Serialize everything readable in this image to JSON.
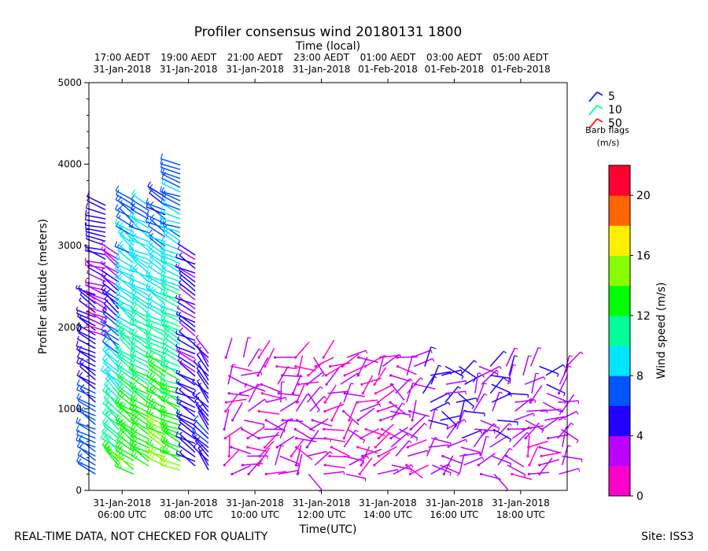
{
  "chart_data": {
    "type": "scatter",
    "title": "Profiler consensus wind 20180131 1800",
    "top_axis_label": "Time (local)",
    "xlabel": "Time(UTC)",
    "ylabel": "Profiler altitude (meters)",
    "x_unit": "hours UTC since 31-Jan-2018 05:00",
    "xlim": [
      0,
      14.4
    ],
    "ylim": [
      0,
      5000
    ],
    "y_ticks": [
      0,
      1000,
      2000,
      3000,
      4000,
      5000
    ],
    "bottom_ticks": [
      {
        "x": 1,
        "line1": "31-Jan-2018",
        "line2": "06:00 UTC"
      },
      {
        "x": 3,
        "line1": "31-Jan-2018",
        "line2": "08:00 UTC"
      },
      {
        "x": 5,
        "line1": "31-Jan-2018",
        "line2": "10:00 UTC"
      },
      {
        "x": 7,
        "line1": "31-Jan-2018",
        "line2": "12:00 UTC"
      },
      {
        "x": 9,
        "line1": "31-Jan-2018",
        "line2": "14:00 UTC"
      },
      {
        "x": 11,
        "line1": "31-Jan-2018",
        "line2": "16:00 UTC"
      },
      {
        "x": 13,
        "line1": "31-Jan-2018",
        "line2": "18:00 UTC"
      }
    ],
    "top_ticks": [
      {
        "x": 1,
        "line1": "17:00 AEDT",
        "line2": "31-Jan-2018"
      },
      {
        "x": 3,
        "line1": "19:00 AEDT",
        "line2": "31-Jan-2018"
      },
      {
        "x": 5,
        "line1": "21:00 AEDT",
        "line2": "31-Jan-2018"
      },
      {
        "x": 7,
        "line1": "23:00 AEDT",
        "line2": "31-Jan-2018"
      },
      {
        "x": 9,
        "line1": "01:00 AEDT",
        "line2": "01-Feb-2018"
      },
      {
        "x": 11,
        "line1": "03:00 AEDT",
        "line2": "01-Feb-2018"
      },
      {
        "x": 13,
        "line1": "05:00 AEDT",
        "line2": "01-Feb-2018"
      }
    ],
    "legend": {
      "title": "Barb flags",
      "unit": "(m/s)",
      "entries": [
        {
          "label": "5",
          "color": "#1a1aff"
        },
        {
          "label": "10",
          "color": "#00ff99"
        },
        {
          "label": "50",
          "color": "#ff1a1a"
        }
      ]
    },
    "colorbar": {
      "label": "Wind speed (m/s)",
      "min": 0,
      "max": 22,
      "ticks": [
        0,
        4,
        8,
        12,
        16,
        20
      ],
      "colors": [
        "#ff00cc",
        "#bb00ff",
        "#2200ff",
        "#0055ff",
        "#00e5ff",
        "#00ff99",
        "#00ff00",
        "#88ff00",
        "#ffee00",
        "#ff6600",
        "#ff0033"
      ]
    },
    "wind_barb_columns": [
      {
        "x": 0.2,
        "z_min": 200,
        "z_max": 2400,
        "speed_low": 8,
        "speed_high": 4,
        "dir_deg": 300
      },
      {
        "x": 0.5,
        "z_min": 1900,
        "z_max": 3500,
        "speed_low": 2,
        "speed_high": 6,
        "dir_deg": 290
      },
      {
        "x": 0.9,
        "z_min": 300,
        "z_max": 2900,
        "speed_low": 13,
        "speed_high": 3,
        "dir_deg": 310
      },
      {
        "x": 1.35,
        "z_min": 200,
        "z_max": 3600,
        "speed_low": 14,
        "speed_high": 7,
        "dir_deg": 305
      },
      {
        "x": 1.8,
        "z_min": 300,
        "z_max": 3500,
        "speed_low": 14,
        "speed_high": 8,
        "dir_deg": 300
      },
      {
        "x": 2.3,
        "z_min": 300,
        "z_max": 3600,
        "speed_low": 15,
        "speed_high": 6,
        "dir_deg": 300
      },
      {
        "x": 2.75,
        "z_min": 250,
        "z_max": 4000,
        "speed_low": 14,
        "speed_high": 7,
        "dir_deg": 295
      },
      {
        "x": 3.2,
        "z_min": 300,
        "z_max": 2900,
        "speed_low": 5,
        "speed_high": 4,
        "dir_deg": 300
      },
      {
        "x": 3.6,
        "z_min": 250,
        "z_max": 1700,
        "speed_low": 6,
        "speed_high": 4,
        "dir_deg": 320
      },
      {
        "x": 4.2,
        "z_min": 200,
        "z_max": 1650,
        "speed_low": 2,
        "speed_high": 2,
        "dir_deg": 60
      },
      {
        "x": 4.7,
        "z_min": 200,
        "z_max": 1650,
        "speed_low": 2,
        "speed_high": 3,
        "dir_deg": 70
      },
      {
        "x": 5.2,
        "z_min": 200,
        "z_max": 1650,
        "speed_low": 2,
        "speed_high": 2,
        "dir_deg": 80
      },
      {
        "x": 5.7,
        "z_min": 200,
        "z_max": 1650,
        "speed_low": 3,
        "speed_high": 2,
        "dir_deg": 60
      },
      {
        "x": 6.2,
        "z_min": 200,
        "z_max": 1650,
        "speed_low": 2,
        "speed_high": 2,
        "dir_deg": 70
      },
      {
        "x": 6.7,
        "z_min": 200,
        "z_max": 1650,
        "speed_low": 3,
        "speed_high": 2,
        "dir_deg": 90
      },
      {
        "x": 7.2,
        "z_min": 200,
        "z_max": 1650,
        "speed_low": 2,
        "speed_high": 2,
        "dir_deg": 60
      },
      {
        "x": 7.7,
        "z_min": 200,
        "z_max": 1650,
        "speed_low": 3,
        "speed_high": 2,
        "dir_deg": 80
      },
      {
        "x": 8.2,
        "z_min": 200,
        "z_max": 1650,
        "speed_low": 2,
        "speed_high": 2,
        "dir_deg": 70
      },
      {
        "x": 8.7,
        "z_min": 200,
        "z_max": 1650,
        "speed_low": 2,
        "speed_high": 2,
        "dir_deg": 60
      },
      {
        "x": 9.2,
        "z_min": 200,
        "z_max": 1650,
        "speed_low": 3,
        "speed_high": 2,
        "dir_deg": 90
      },
      {
        "x": 9.7,
        "z_min": 200,
        "z_max": 1650,
        "speed_low": 2,
        "speed_high": 3,
        "dir_deg": 70
      },
      {
        "x": 10.2,
        "z_min": 200,
        "z_max": 1600,
        "speed_low": 3,
        "speed_high": 5,
        "dir_deg": 60
      },
      {
        "x": 10.7,
        "z_min": 200,
        "z_max": 1600,
        "speed_low": 2,
        "speed_high": 5,
        "dir_deg": 80
      },
      {
        "x": 11.2,
        "z_min": 200,
        "z_max": 1600,
        "speed_low": 3,
        "speed_high": 5,
        "dir_deg": 70
      },
      {
        "x": 11.7,
        "z_min": 200,
        "z_max": 1600,
        "speed_low": 2,
        "speed_high": 4,
        "dir_deg": 60
      },
      {
        "x": 12.2,
        "z_min": 200,
        "z_max": 1600,
        "speed_low": 3,
        "speed_high": 5,
        "dir_deg": 80
      },
      {
        "x": 12.7,
        "z_min": 200,
        "z_max": 1600,
        "speed_low": 2,
        "speed_high": 4,
        "dir_deg": 70
      },
      {
        "x": 13.2,
        "z_min": 200,
        "z_max": 1600,
        "speed_low": 2,
        "speed_high": 3,
        "dir_deg": 60
      },
      {
        "x": 13.7,
        "z_min": 200,
        "z_max": 1600,
        "speed_low": 2,
        "speed_high": 4,
        "dir_deg": 80
      },
      {
        "x": 14.25,
        "z_min": 200,
        "z_max": 1600,
        "speed_low": 3,
        "speed_high": 3,
        "dir_deg": 70
      }
    ]
  },
  "footer": {
    "left": "REAL-TIME DATA, NOT CHECKED FOR QUALITY",
    "right": "Site: ISS3"
  }
}
